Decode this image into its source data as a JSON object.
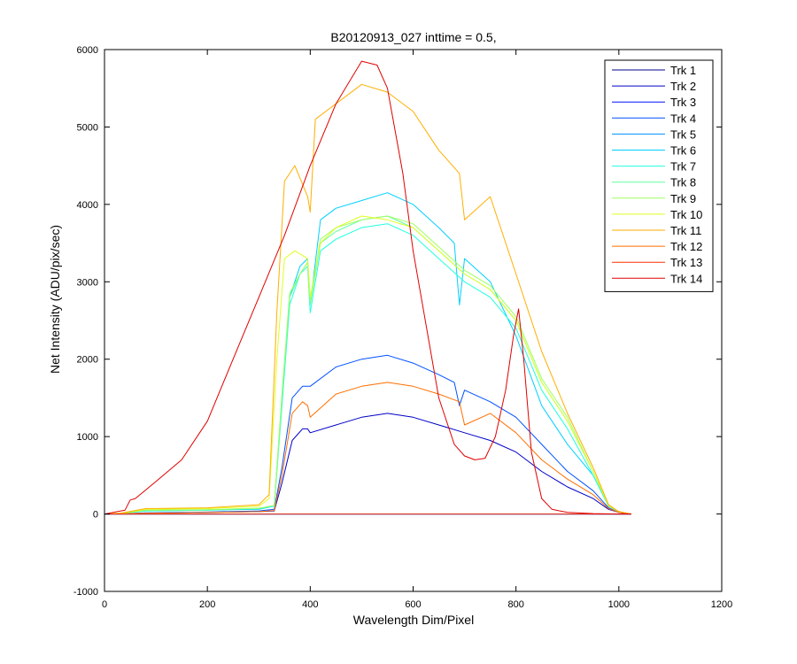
{
  "chart_data": {
    "type": "line",
    "title": "B20120913_027 inttime = 0.5,",
    "xlabel": "Wavelength Dim/Pixel",
    "ylabel": "Net Intensity (ADU/pix/sec)",
    "xlim": [
      0,
      1200
    ],
    "ylim": [
      -1000,
      6000
    ],
    "xticks": [
      0,
      200,
      400,
      600,
      800,
      1000,
      1200
    ],
    "yticks": [
      -1000,
      0,
      1000,
      2000,
      3000,
      4000,
      5000,
      6000
    ],
    "grid": false,
    "legend_position": "top-right",
    "series": [
      {
        "name": "Trk 1",
        "color": "#00008f",
        "x": [
          0,
          1024
        ],
        "y": [
          0,
          0
        ]
      },
      {
        "name": "Trk 2",
        "color": "#0000c8",
        "x": [
          0,
          30,
          80,
          200,
          300,
          330,
          345,
          365,
          385,
          395,
          400,
          450,
          500,
          550,
          600,
          650,
          700,
          750,
          800,
          850,
          900,
          950,
          980,
          1000,
          1024
        ],
        "y": [
          0,
          2,
          10,
          20,
          30,
          40,
          400,
          950,
          1100,
          1100,
          1050,
          1150,
          1250,
          1300,
          1250,
          1150,
          1050,
          950,
          800,
          550,
          350,
          200,
          60,
          20,
          0
        ]
      },
      {
        "name": "Trk 3",
        "color": "#0010ff",
        "x": [
          0,
          1024
        ],
        "y": [
          0,
          0
        ]
      },
      {
        "name": "Trk 4",
        "color": "#0050ff",
        "x": [
          0,
          30,
          80,
          200,
          300,
          330,
          345,
          365,
          385,
          400,
          450,
          500,
          550,
          600,
          650,
          680,
          690,
          700,
          750,
          800,
          850,
          900,
          950,
          980,
          1000,
          1024
        ],
        "y": [
          0,
          2,
          15,
          25,
          40,
          60,
          600,
          1500,
          1650,
          1650,
          1900,
          2000,
          2050,
          1950,
          1800,
          1700,
          1400,
          1600,
          1450,
          1250,
          900,
          550,
          300,
          80,
          20,
          0
        ]
      },
      {
        "name": "Trk 5",
        "color": "#0090ff",
        "x": [
          0,
          1024
        ],
        "y": [
          0,
          0
        ]
      },
      {
        "name": "Trk 6",
        "color": "#00d0ff",
        "x": [
          0,
          30,
          80,
          200,
          300,
          330,
          345,
          360,
          380,
          395,
          400,
          420,
          450,
          500,
          550,
          600,
          650,
          680,
          690,
          700,
          750,
          800,
          850,
          900,
          950,
          980,
          1000,
          1024
        ],
        "y": [
          0,
          5,
          40,
          50,
          60,
          100,
          1500,
          2800,
          3200,
          3300,
          2700,
          3800,
          3950,
          4050,
          4150,
          4000,
          3700,
          3500,
          2700,
          3300,
          3000,
          2300,
          1400,
          900,
          500,
          100,
          30,
          0
        ]
      },
      {
        "name": "Trk 7",
        "color": "#20ffdf",
        "x": [
          0,
          30,
          80,
          200,
          300,
          330,
          345,
          360,
          380,
          395,
          400,
          420,
          450,
          500,
          550,
          600,
          650,
          700,
          750,
          800,
          850,
          900,
          950,
          980,
          1000,
          1024
        ],
        "y": [
          0,
          5,
          40,
          50,
          70,
          100,
          1400,
          2700,
          3100,
          3200,
          2600,
          3400,
          3550,
          3700,
          3750,
          3600,
          3300,
          3000,
          2800,
          2400,
          1600,
          1100,
          500,
          100,
          30,
          0
        ]
      },
      {
        "name": "Trk 8",
        "color": "#60ff9f",
        "x": [
          0,
          30,
          80,
          200,
          300,
          330,
          345,
          360,
          380,
          395,
          400,
          420,
          450,
          500,
          550,
          600,
          650,
          700,
          750,
          800,
          850,
          900,
          950,
          980,
          1000,
          1024
        ],
        "y": [
          0,
          5,
          45,
          55,
          70,
          110,
          1500,
          2800,
          3100,
          3250,
          2700,
          3500,
          3650,
          3800,
          3850,
          3700,
          3400,
          3100,
          2900,
          2500,
          1700,
          1200,
          550,
          100,
          30,
          0
        ]
      },
      {
        "name": "Trk 9",
        "color": "#9fff60",
        "x": [
          0,
          30,
          80,
          200,
          300,
          330,
          345,
          360,
          380,
          395,
          400,
          420,
          450,
          500,
          550,
          600,
          650,
          700,
          750,
          800,
          850,
          900,
          950,
          980,
          1000,
          1024
        ],
        "y": [
          0,
          5,
          50,
          55,
          75,
          110,
          1550,
          2850,
          3100,
          3250,
          2750,
          3550,
          3700,
          3800,
          3850,
          3750,
          3450,
          3150,
          2950,
          2550,
          1750,
          1250,
          550,
          110,
          30,
          0
        ]
      },
      {
        "name": "Trk 10",
        "color": "#dfff20",
        "x": [
          0,
          30,
          80,
          200,
          300,
          320,
          335,
          350,
          370,
          395,
          400,
          420,
          450,
          500,
          550,
          600,
          650,
          700,
          750,
          800,
          850,
          900,
          950,
          980,
          1000,
          1024
        ],
        "y": [
          0,
          10,
          60,
          70,
          100,
          200,
          2000,
          3300,
          3400,
          3300,
          2800,
          3500,
          3700,
          3850,
          3800,
          3700,
          3400,
          3100,
          2900,
          2500,
          1700,
          1200,
          550,
          110,
          30,
          0
        ]
      },
      {
        "name": "Trk 11",
        "color": "#ffaf00",
        "x": [
          0,
          30,
          80,
          200,
          300,
          320,
          335,
          350,
          370,
          395,
          400,
          410,
          450,
          500,
          550,
          600,
          650,
          690,
          700,
          750,
          800,
          850,
          900,
          950,
          980,
          1000,
          1024
        ],
        "y": [
          0,
          10,
          70,
          80,
          120,
          250,
          2600,
          4300,
          4500,
          4100,
          3900,
          5100,
          5300,
          5550,
          5450,
          5200,
          4700,
          4400,
          3800,
          4100,
          3100,
          2100,
          1300,
          600,
          120,
          30,
          0
        ]
      },
      {
        "name": "Trk 12",
        "color": "#ff6f00",
        "x": [
          0,
          30,
          80,
          200,
          300,
          330,
          345,
          365,
          385,
          395,
          400,
          450,
          500,
          550,
          600,
          650,
          690,
          700,
          750,
          800,
          850,
          900,
          950,
          980,
          1000,
          1024
        ],
        "y": [
          0,
          2,
          10,
          20,
          30,
          45,
          500,
          1300,
          1450,
          1400,
          1250,
          1550,
          1650,
          1700,
          1650,
          1550,
          1450,
          1150,
          1300,
          1050,
          700,
          450,
          250,
          70,
          20,
          0
        ]
      },
      {
        "name": "Trk 13",
        "color": "#ff2f00",
        "x": [
          0,
          1024
        ],
        "y": [
          0,
          0
        ]
      },
      {
        "name": "Trk 14",
        "color": "#df0000",
        "x": [
          0,
          40,
          50,
          60,
          100,
          150,
          200,
          250,
          300,
          350,
          400,
          450,
          500,
          530,
          550,
          580,
          600,
          650,
          680,
          700,
          720,
          740,
          760,
          780,
          795,
          805,
          815,
          830,
          850,
          870,
          900,
          950,
          1000,
          1024
        ],
        "y": [
          0,
          50,
          180,
          200,
          420,
          700,
          1200,
          2000,
          2800,
          3600,
          4500,
          5300,
          5850,
          5800,
          5500,
          4400,
          3400,
          1500,
          900,
          750,
          700,
          720,
          1000,
          1600,
          2300,
          2650,
          2000,
          800,
          200,
          60,
          20,
          5,
          0,
          0
        ]
      }
    ]
  }
}
